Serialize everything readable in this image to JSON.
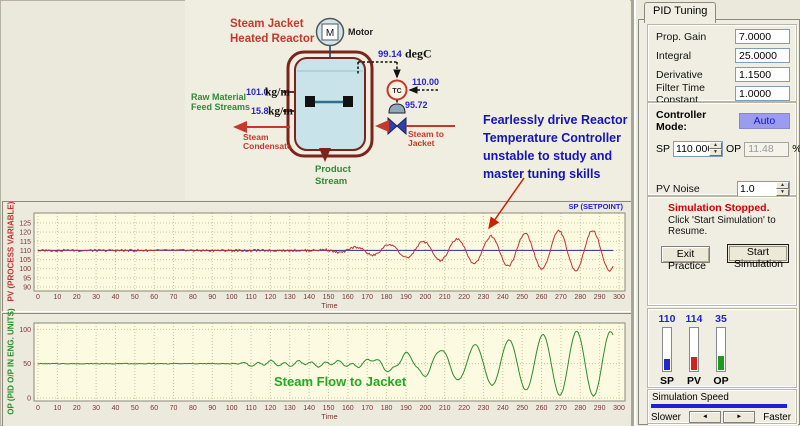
{
  "diagram": {
    "title_line1": "Steam Jacket",
    "title_line2": "Heated Reactor",
    "motor_letter": "M",
    "motor_label": "Motor",
    "tc_label": "TC",
    "temp_value": "99.14",
    "temp_units": "degC",
    "remote_sp_value": "110.00",
    "valve_signal_value": "95.72",
    "feed1_value": "101.0",
    "feed1_units": "kg/m",
    "feed2_value": "15.8",
    "feed2_units": "kg/m",
    "raw_material_1": "Raw Material",
    "raw_material_2": "Feed Streams",
    "steam_condensate_1": "Steam",
    "steam_condensate_2": "Condensate",
    "steam_to_jacket_1": "Steam to",
    "steam_to_jacket_2": "Jacket",
    "product_1": "Product",
    "product_2": "Stream"
  },
  "annotation": {
    "lines": [
      "Fearlessly drive Reactor",
      "Temperature Controller",
      "unstable to study and",
      "master tuning skills"
    ]
  },
  "pid_panel": {
    "tab": "PID Tuning",
    "fields": [
      {
        "label": "Prop. Gain",
        "value": "7.0000"
      },
      {
        "label": "Integral",
        "value": "25.0000"
      },
      {
        "label": "Derivative",
        "value": "1.1500"
      },
      {
        "label": "Filter Time Constant",
        "value": "1.0000"
      }
    ],
    "controller_mode_label": "Controller Mode:",
    "auto_button": "Auto",
    "sp_label": "SP",
    "sp_value": "110.000",
    "op_label": "OP",
    "op_value": "11.48",
    "percent": "%",
    "pv_noise_label": "PV Noise",
    "pv_noise_value": "1.0",
    "status_title": "Simulation Stopped.",
    "status_text": "Click 'Start Simulation' to Resume.",
    "exit_button": "Exit Practice",
    "start_button": "Start Simulation",
    "gauges": [
      {
        "value": "110",
        "label": "SP",
        "fill_style": "height:11px;background:#2525CC"
      },
      {
        "value": "114",
        "label": "PV",
        "fill_style": "height:13px;background:#D42020"
      },
      {
        "value": "35",
        "label": "OP",
        "fill_style": "height:14px;background:#1F9A1F"
      }
    ],
    "sim_speed_label": "Simulation Speed",
    "slower": "Slower",
    "faster": "Faster"
  },
  "chart_data": [
    {
      "type": "line",
      "ylabel": "PV (PROCESS VARIABLE)",
      "xlabel": "Time",
      "corner_label": "SP (SETPOINT)",
      "xlim": [
        0,
        300
      ],
      "xtick_step": 10,
      "yticks": [
        90,
        95,
        100,
        105,
        110,
        115,
        120,
        125
      ],
      "ylim": [
        87.8,
        130.5
      ],
      "grid": true,
      "legend_position": "top-right",
      "series": [
        {
          "name": "SP (SETPOINT)",
          "color": "#2B2BA8",
          "kind": "const",
          "value": 110
        },
        {
          "name": "PV reactor temperature",
          "color": "#C03434",
          "kind": "growing_oscillation",
          "baseline": 110,
          "noise": 0.6,
          "seed": 3,
          "osc_start": 142,
          "period": 17.5,
          "amp_rate": 0.085,
          "amp_max": 11
        }
      ]
    },
    {
      "type": "line",
      "ylabel": "OP (PID O/P IN ENG. UNITS)",
      "xlabel": "Time",
      "inplot_label": "Steam Flow to Jacket",
      "xlim": [
        0,
        300
      ],
      "xtick_step": 10,
      "yticks": [
        0,
        50,
        100
      ],
      "ylim": [
        -4.4,
        109.3
      ],
      "grid": true,
      "series": [
        {
          "name": "OP steam flow to jacket",
          "color": "#2E8B2E",
          "kind": "growing_oscillation",
          "baseline": 50,
          "noise": 0.5,
          "seed": 7,
          "osc_start": 160,
          "period": 17.5,
          "amp_rate": 0.42,
          "amp_max": 47,
          "phase": 3.14159,
          "wander": {
            "start": 112,
            "end": 195,
            "amp": 5
          }
        }
      ]
    }
  ]
}
